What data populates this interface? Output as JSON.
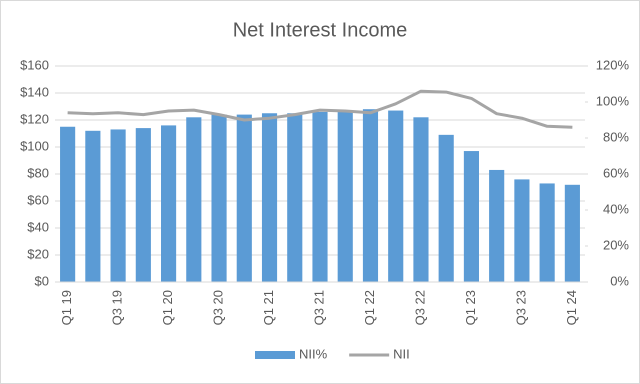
{
  "chart_data": {
    "type": "bar",
    "title": "Net Interest Income",
    "categories": [
      "Q1 19",
      null,
      "Q3 19",
      null,
      "Q1 20",
      null,
      "Q3 20",
      null,
      "Q1 21",
      null,
      "Q3 21",
      null,
      "Q1 22",
      null,
      "Q3 22",
      null,
      "Q1 23",
      null,
      "Q3 23",
      null,
      "Q1 24"
    ],
    "series": [
      {
        "name": "NII%",
        "type": "bar",
        "color": "#5b9bd5",
        "values": [
          115,
          112,
          113,
          114,
          116,
          122,
          124,
          124,
          125,
          125,
          126,
          127,
          128,
          127,
          122,
          109,
          97,
          83,
          76,
          73,
          72
        ]
      },
      {
        "name": "NII",
        "type": "line",
        "axis": "y2",
        "color": "#a5a5a5",
        "values": [
          94,
          93.5,
          94,
          93,
          95,
          95.5,
          93,
          90,
          91,
          93,
          95.5,
          95,
          94,
          99,
          106,
          105.5,
          102,
          93.5,
          91,
          86.5,
          86
        ]
      }
    ],
    "ylim": [
      0,
      160
    ],
    "yticks": [
      {
        "value": 0,
        "label": "$0"
      },
      {
        "value": 20,
        "label": "$20"
      },
      {
        "value": 40,
        "label": "$40"
      },
      {
        "value": 60,
        "label": "$60"
      },
      {
        "value": 80,
        "label": "$80"
      },
      {
        "value": 100,
        "label": "$100"
      },
      {
        "value": 120,
        "label": "$120"
      },
      {
        "value": 140,
        "label": "$140"
      },
      {
        "value": 160,
        "label": "$160"
      }
    ],
    "y2lim": [
      0,
      120
    ],
    "y2ticks": [
      {
        "value": 0,
        "label": "0%"
      },
      {
        "value": 20,
        "label": "20%"
      },
      {
        "value": 40,
        "label": "40%"
      },
      {
        "value": 60,
        "label": "60%"
      },
      {
        "value": 80,
        "label": "80%"
      },
      {
        "value": 100,
        "label": "100%"
      },
      {
        "value": 120,
        "label": "120%"
      }
    ],
    "grid": true,
    "legend": "bottom"
  }
}
